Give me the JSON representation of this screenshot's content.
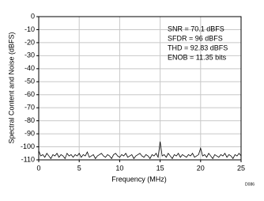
{
  "chart_data": {
    "type": "line",
    "xlabel": "Frequency (MHz)",
    "ylabel": "Spectral Content and Noise (dBFS)",
    "annotations": [
      "SNR = 70.1 dBFS",
      "SFDR = 96 dBFS",
      "THD = 92.83 dBFS",
      "ENOB = 11.35 bits"
    ],
    "figure_id": "D086",
    "xlim": [
      0,
      25
    ],
    "xticks": [
      0,
      5,
      10,
      15,
      20,
      25
    ],
    "ylim": [
      -110,
      0
    ],
    "yticks": [
      0,
      -10,
      -20,
      -30,
      -40,
      -50,
      -60,
      -70,
      -80,
      -90,
      -100,
      -110
    ],
    "grid": true,
    "x": [
      0,
      0.25,
      0.5,
      0.75,
      1,
      1.25,
      1.5,
      1.75,
      2,
      2.25,
      2.5,
      2.75,
      3,
      3.25,
      3.5,
      3.75,
      4,
      4.25,
      4.5,
      4.75,
      5,
      5.25,
      5.5,
      5.75,
      6,
      6.25,
      6.5,
      6.75,
      7,
      7.25,
      7.5,
      7.75,
      8,
      8.25,
      8.5,
      8.75,
      9,
      9.25,
      9.5,
      9.75,
      10,
      10.25,
      10.5,
      10.75,
      11,
      11.25,
      11.5,
      11.75,
      12,
      12.25,
      12.5,
      12.75,
      13,
      13.25,
      13.5,
      13.75,
      14,
      14.25,
      14.5,
      14.75,
      15,
      15.25,
      15.5,
      15.75,
      16,
      16.25,
      16.5,
      16.75,
      17,
      17.25,
      17.5,
      17.75,
      18,
      18.25,
      18.5,
      18.75,
      19,
      19.25,
      19.5,
      19.75,
      20,
      20.25,
      20.5,
      20.75,
      21,
      21.25,
      21.5,
      21.75,
      22,
      22.25,
      22.5,
      22.75,
      23,
      23.25,
      23.5,
      23.75,
      24,
      24.25,
      24.5,
      24.75,
      25
    ],
    "series": [
      {
        "color": "#000000",
        "values": [
          -103,
          -107,
          -106,
          -108,
          -105,
          -107,
          -109,
          -106,
          -107,
          -105,
          -108,
          -106,
          -107,
          -109,
          -105,
          -107,
          -106,
          -108,
          -106,
          -107,
          -105,
          -108,
          -106,
          -107,
          -104,
          -108,
          -107,
          -106,
          -109,
          -107,
          -106,
          -105,
          -107,
          -108,
          -106,
          -107,
          -109,
          -106,
          -105,
          -107,
          -108,
          -106,
          -107,
          -105,
          -108,
          -107,
          -106,
          -109,
          -107,
          -106,
          -105,
          -107,
          -108,
          -106,
          -107,
          -109,
          -106,
          -107,
          -105,
          -108,
          -96,
          -107,
          -106,
          -108,
          -105,
          -107,
          -109,
          -106,
          -107,
          -105,
          -108,
          -106,
          -107,
          -108,
          -106,
          -107,
          -105,
          -108,
          -107,
          -106,
          -101,
          -107,
          -106,
          -108,
          -105,
          -107,
          -109,
          -106,
          -107,
          -108,
          -106,
          -107,
          -105,
          -108,
          -106,
          -107,
          -109,
          -106,
          -107,
          -105,
          -107
        ]
      }
    ]
  }
}
